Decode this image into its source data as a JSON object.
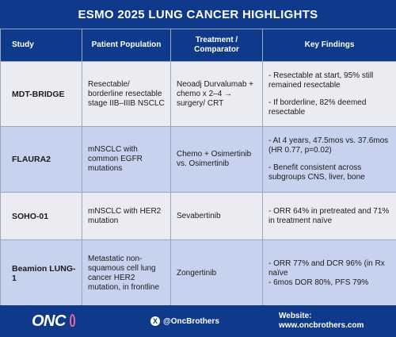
{
  "title": "ESMO 2025 LUNG CANCER HIGHLIGHTS",
  "columns": [
    "Study",
    "Patient Population",
    "Treatment / Comparator",
    "Key Findings"
  ],
  "rows": [
    {
      "study": "MDT-BRIDGE",
      "population": "Resectable/ borderline resectable stage IIB–IIIB NSCLC",
      "treatment": "Neoadj Durvalumab + chemo x 2–4 → surgery/ CRT",
      "findings": [
        "- Resectable at start, 95% still remained resectable",
        "- If borderline, 82% deemed resectable"
      ]
    },
    {
      "study": "FLAURA2",
      "population": "mNSCLC with common EGFR mutations",
      "treatment": "Chemo + Osimertinib vs. Osimertinib",
      "findings": [
        "- At 4 years, 47.5mos vs. 37.6mos (HR 0.77, p=0.02)",
        "- Benefit consistent across subgroups CNS, liver, bone"
      ]
    },
    {
      "study": "SOHO-01",
      "population": "mNSCLC with HER2 mutation",
      "treatment": "Sevabertinib",
      "findings": [
        "- ORR 64% in pretreated and 71% in treatment naïve"
      ]
    },
    {
      "study": "Beamion LUNG-1",
      "population": "Metastatic non-squamous cell lung cancer HER2 mutation, in frontline",
      "treatment": "Zongertinib",
      "findings": [
        "- ORR 77% and DCR 96% (in Rx naïve",
        "- 6mos DOR 80%, PFS 79%"
      ]
    }
  ],
  "footer": {
    "logo": "ONC",
    "handle": "@OncBrothers",
    "website_label": "Website:",
    "website_url": "www.oncbrothers.com"
  },
  "colors": {
    "header_bg": "#0f3a8c",
    "row_light": "#ebecf2",
    "row_blue": "#c6d2ee",
    "ribbon": "#e86ba0"
  }
}
